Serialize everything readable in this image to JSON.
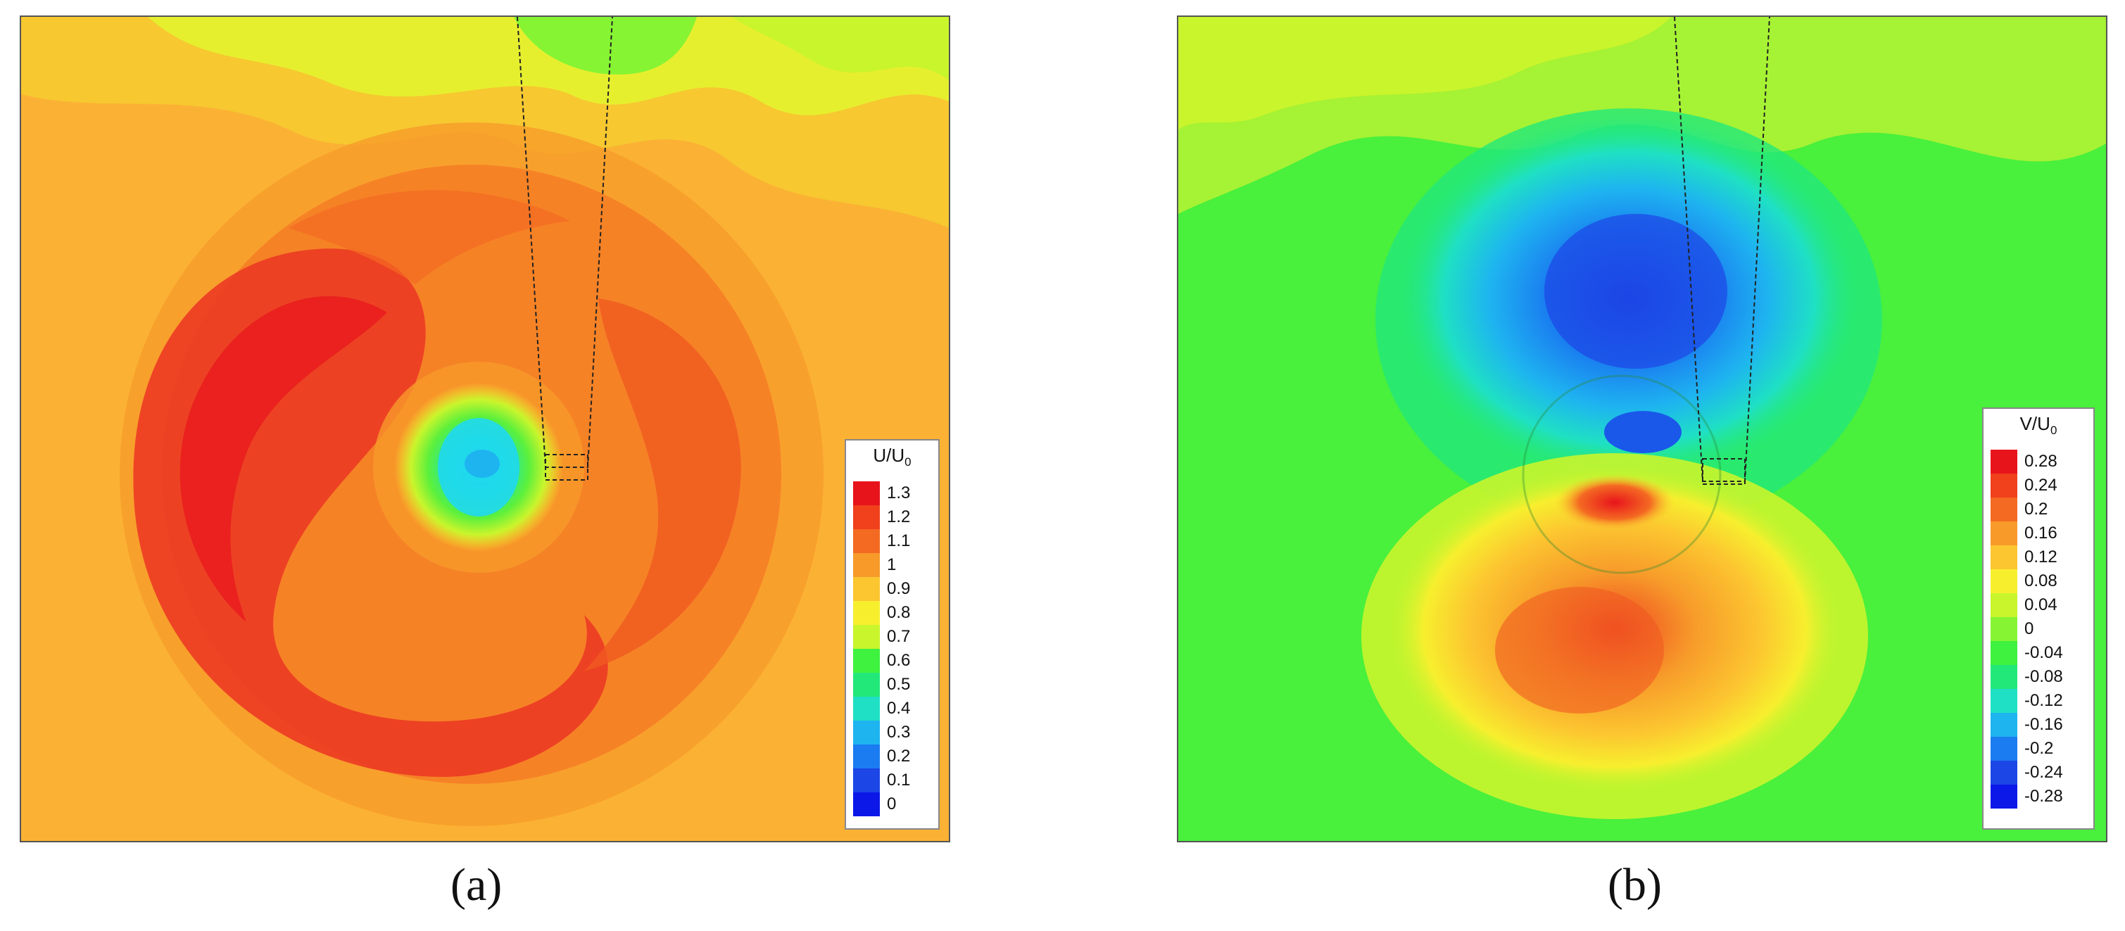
{
  "panels": [
    {
      "id": "a",
      "caption": "(a)",
      "legend": {
        "title_main": "U/U",
        "title_sub": "0",
        "levels": [
          "1.3",
          "1.2",
          "1.1",
          "1",
          "0.9",
          "0.8",
          "0.7",
          "0.6",
          "0.5",
          "0.4",
          "0.3",
          "0.2",
          "0.1",
          "0"
        ]
      }
    },
    {
      "id": "b",
      "caption": "(b)",
      "legend": {
        "title_main": "V/U",
        "title_sub": "0",
        "levels": [
          "0.28",
          "0.24",
          "0.2",
          "0.16",
          "0.12",
          "0.08",
          "0.04",
          "0",
          "-0.04",
          "-0.08",
          "-0.12",
          "-0.16",
          "-0.2",
          "-0.24",
          "-0.28"
        ]
      }
    }
  ],
  "colormap": [
    "#e8141c",
    "#f0401c",
    "#f46a22",
    "#f79a2a",
    "#fcc630",
    "#f7ef2e",
    "#c9f52c",
    "#86f433",
    "#3ef23f",
    "#22e87a",
    "#1fe0c4",
    "#1eb4f0",
    "#1a7cf0",
    "#1c46e6",
    "#0b18e8"
  ]
}
